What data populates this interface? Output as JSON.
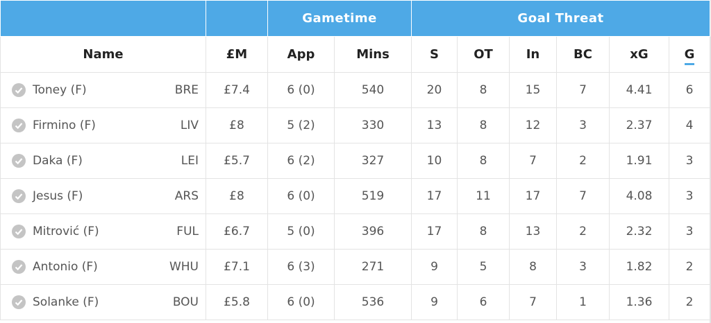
{
  "header": {
    "groups": [
      "Gametime",
      "Goal Threat"
    ],
    "columns": [
      "Name",
      "£M",
      "App",
      "Mins",
      "S",
      "OT",
      "In",
      "BC",
      "xG",
      "G"
    ]
  },
  "table": {
    "rows": [
      [
        "Toney (F)",
        "BRE",
        "£7.4",
        "6 (0)",
        "540",
        "20",
        "8",
        "15",
        "7",
        "4.41",
        "6"
      ],
      [
        "Firmino (F)",
        "LIV",
        "£8",
        "5 (2)",
        "330",
        "13",
        "8",
        "12",
        "3",
        "2.37",
        "4"
      ],
      [
        "Daka (F)",
        "LEI",
        "£5.7",
        "6 (2)",
        "327",
        "10",
        "8",
        "7",
        "2",
        "1.91",
        "3"
      ],
      [
        "Jesus (F)",
        "ARS",
        "£8",
        "6 (0)",
        "519",
        "17",
        "11",
        "17",
        "7",
        "4.08",
        "3"
      ],
      [
        "Mitrović (F)",
        "FUL",
        "£6.7",
        "5 (0)",
        "396",
        "17",
        "8",
        "13",
        "2",
        "2.32",
        "3"
      ],
      [
        "Antonio (F)",
        "WHU",
        "£7.1",
        "6 (3)",
        "271",
        "9",
        "5",
        "8",
        "3",
        "1.82",
        "2"
      ],
      [
        "Solanke (F)",
        "BOU",
        "£5.8",
        "6 (0)",
        "536",
        "9",
        "6",
        "7",
        "1",
        "1.36",
        "2"
      ]
    ]
  }
}
